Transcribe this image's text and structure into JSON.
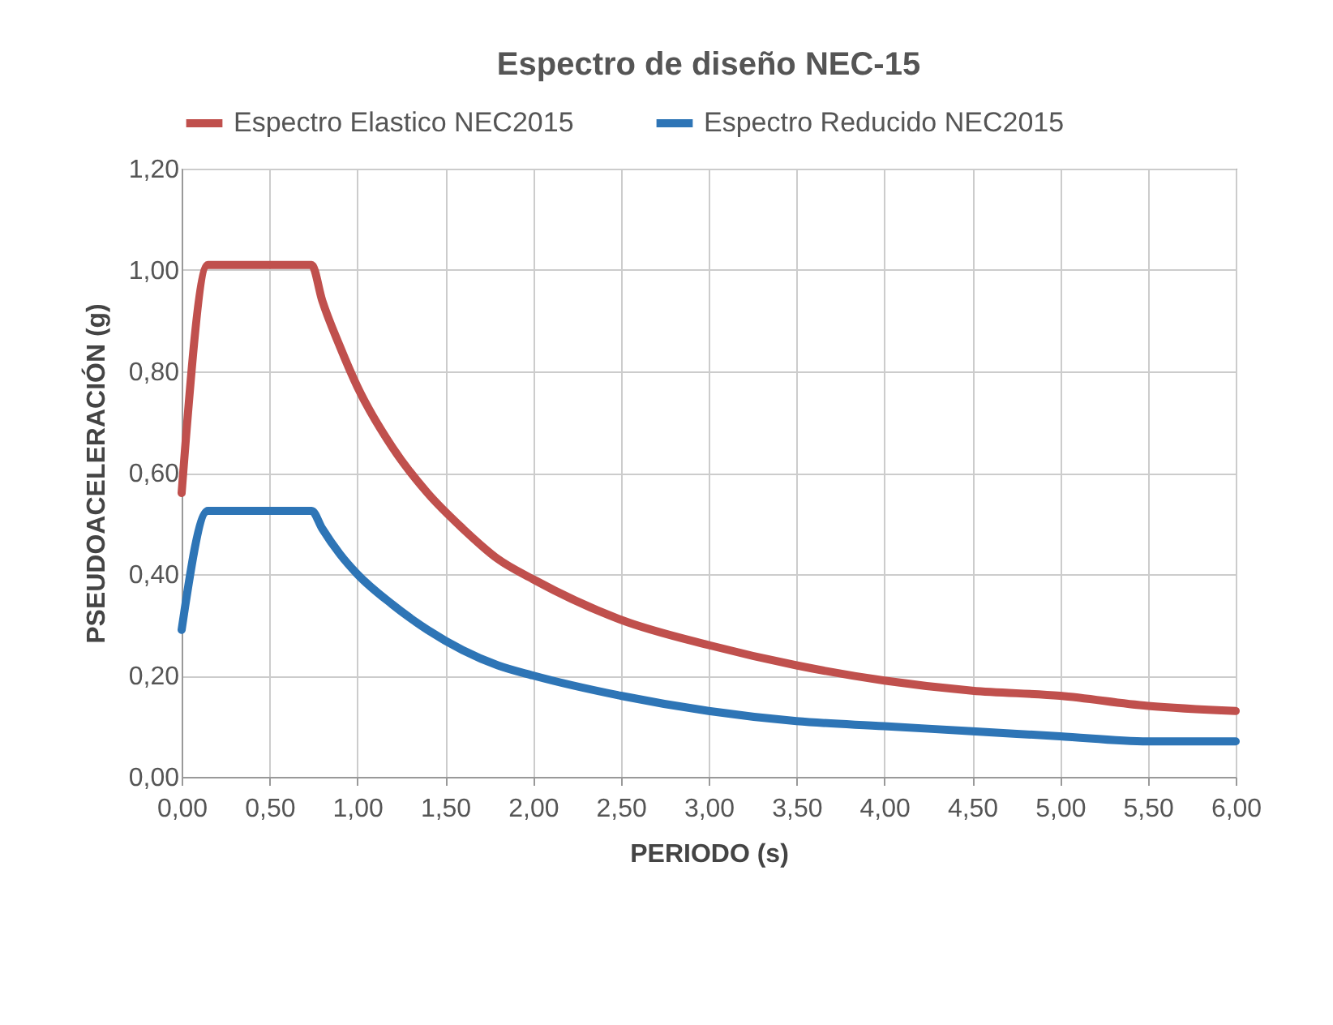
{
  "chart_data": {
    "type": "line",
    "title": "Espectro de diseño NEC-15",
    "xlabel": "PERIODO (s)",
    "ylabel": "PSEUDOACELERACIÓN (g)",
    "x": [
      0,
      0.15,
      0.74,
      0.8,
      0.9,
      1.0,
      1.2,
      1.4,
      1.6,
      1.8,
      2.0,
      2.5,
      3.0,
      3.5,
      4.0,
      4.5,
      5.0,
      5.5,
      6.0
    ],
    "series": [
      {
        "name": "Espectro Elastico NEC2015",
        "color": "#c0504d",
        "values": [
          0.56,
          1.01,
          1.01,
          0.94,
          0.85,
          0.77,
          0.65,
          0.56,
          0.49,
          0.43,
          0.39,
          0.31,
          0.26,
          0.22,
          0.19,
          0.17,
          0.16,
          0.14,
          0.13
        ]
      },
      {
        "name": "Espectro Reducido NEC2015",
        "color": "#2e75b6",
        "values": [
          0.29,
          0.525,
          0.525,
          0.49,
          0.44,
          0.4,
          0.34,
          0.29,
          0.25,
          0.22,
          0.2,
          0.16,
          0.13,
          0.11,
          0.1,
          0.09,
          0.08,
          0.07,
          0.07
        ]
      }
    ],
    "xlim": [
      0,
      6
    ],
    "ylim": [
      0,
      1.2
    ],
    "xticks": [
      {
        "value": 0,
        "label": "0,00"
      },
      {
        "value": 0.5,
        "label": "0,50"
      },
      {
        "value": 1,
        "label": "1,00"
      },
      {
        "value": 1.5,
        "label": "1,50"
      },
      {
        "value": 2,
        "label": "2,00"
      },
      {
        "value": 2.5,
        "label": "2,50"
      },
      {
        "value": 3,
        "label": "3,00"
      },
      {
        "value": 3.5,
        "label": "3,50"
      },
      {
        "value": 4,
        "label": "4,00"
      },
      {
        "value": 4.5,
        "label": "4,50"
      },
      {
        "value": 5,
        "label": "5,00"
      },
      {
        "value": 5.5,
        "label": "5,50"
      },
      {
        "value": 6,
        "label": "6,00"
      }
    ],
    "yticks": [
      {
        "value": 0,
        "label": "0,00"
      },
      {
        "value": 0.2,
        "label": "0,20"
      },
      {
        "value": 0.4,
        "label": "0,40"
      },
      {
        "value": 0.6,
        "label": "0,60"
      },
      {
        "value": 0.8,
        "label": "0,80"
      },
      {
        "value": 1,
        "label": "1,00"
      },
      {
        "value": 1.2,
        "label": "1,20"
      }
    ],
    "grid": true,
    "legend": "top",
    "line_style": "solid",
    "marker": "none"
  }
}
